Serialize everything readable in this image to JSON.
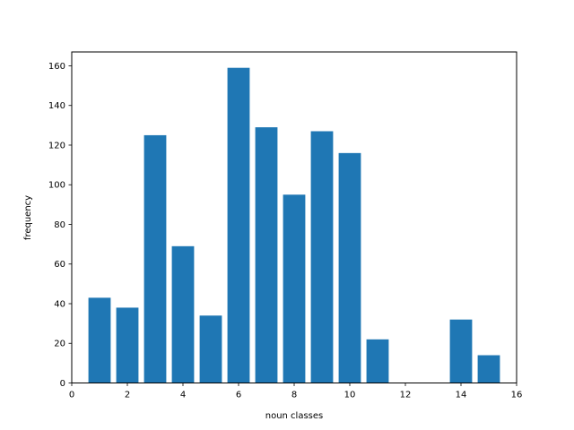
{
  "chart_data": {
    "type": "bar",
    "title": "",
    "xlabel": "noun classes",
    "ylabel": "frequency",
    "x": [
      1,
      2,
      3,
      4,
      5,
      6,
      7,
      8,
      9,
      10,
      11,
      14,
      15
    ],
    "values": [
      43,
      38,
      125,
      69,
      34,
      159,
      129,
      95,
      127,
      116,
      22,
      32,
      14
    ],
    "bar_color": "#1f77b4",
    "xlim": [
      0,
      16
    ],
    "ylim": [
      0,
      167
    ],
    "x_ticks": [
      0,
      2,
      4,
      6,
      8,
      10,
      12,
      14,
      16
    ],
    "y_ticks": [
      0,
      20,
      40,
      60,
      80,
      100,
      120,
      140,
      160
    ],
    "grid": false
  }
}
